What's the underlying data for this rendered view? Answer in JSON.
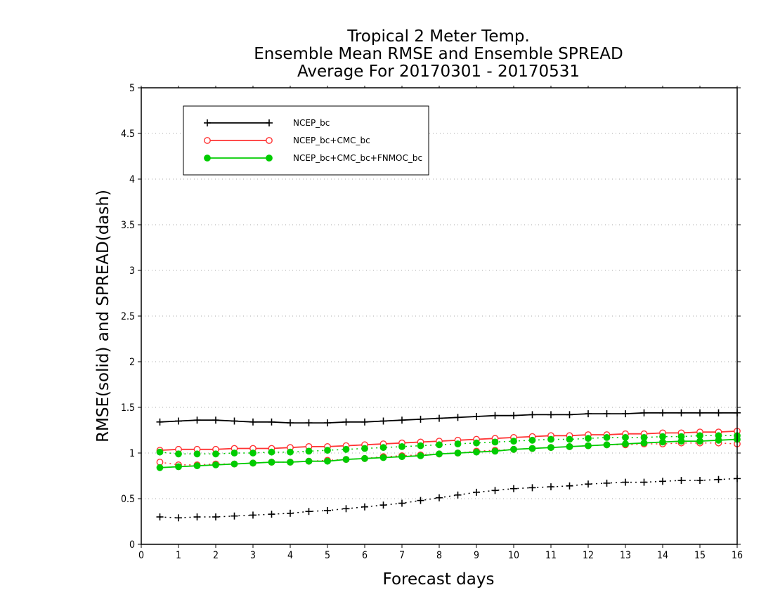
{
  "chart_data": {
    "type": "line",
    "title": [
      "Tropical 2 Meter Temp.",
      "Ensemble Mean RMSE and Ensemble SPREAD",
      "Average For 20170301 - 20170531"
    ],
    "xlabel": "Forecast days",
    "ylabel": "RMSE(solid) and SPREAD(dash)",
    "xlim": [
      0,
      16
    ],
    "ylim": [
      0,
      5
    ],
    "xticks": [
      "0",
      "1",
      "2",
      "3",
      "4",
      "5",
      "6",
      "7",
      "8",
      "9",
      "10",
      "11",
      "12",
      "13",
      "14",
      "15",
      "16"
    ],
    "yticks": [
      "0",
      "0.5",
      "1",
      "1.5",
      "2",
      "2.5",
      "3",
      "3.5",
      "4",
      "4.5",
      "5"
    ],
    "grid": true,
    "legend_position": "top-left",
    "x": [
      0.5,
      1,
      1.5,
      2,
      2.5,
      3,
      3.5,
      4,
      4.5,
      5,
      5.5,
      6,
      6.5,
      7,
      7.5,
      8,
      8.5,
      9,
      9.5,
      10,
      10.5,
      11,
      11.5,
      12,
      12.5,
      13,
      13.5,
      14,
      14.5,
      15,
      15.5,
      16
    ],
    "series": [
      {
        "name": "NCEP_bc",
        "color": "#000000",
        "marker": "plus",
        "rmse": [
          1.34,
          1.35,
          1.36,
          1.36,
          1.35,
          1.34,
          1.34,
          1.33,
          1.33,
          1.33,
          1.34,
          1.34,
          1.35,
          1.36,
          1.37,
          1.38,
          1.39,
          1.4,
          1.41,
          1.41,
          1.42,
          1.42,
          1.42,
          1.43,
          1.43,
          1.43,
          1.44,
          1.44,
          1.44,
          1.44,
          1.44,
          1.44
        ],
        "spread": [
          0.3,
          0.29,
          0.3,
          0.3,
          0.31,
          0.32,
          0.33,
          0.34,
          0.36,
          0.37,
          0.39,
          0.41,
          0.43,
          0.45,
          0.48,
          0.51,
          0.54,
          0.57,
          0.59,
          0.61,
          0.62,
          0.63,
          0.64,
          0.66,
          0.67,
          0.68,
          0.68,
          0.69,
          0.7,
          0.7,
          0.71,
          0.72
        ]
      },
      {
        "name": "NCEP_bc+CMC_bc",
        "color": "#ff3333",
        "marker": "open-circle",
        "rmse": [
          1.03,
          1.04,
          1.04,
          1.04,
          1.05,
          1.05,
          1.05,
          1.06,
          1.07,
          1.07,
          1.08,
          1.09,
          1.1,
          1.11,
          1.12,
          1.13,
          1.14,
          1.15,
          1.16,
          1.17,
          1.18,
          1.19,
          1.19,
          1.2,
          1.2,
          1.21,
          1.21,
          1.22,
          1.22,
          1.23,
          1.23,
          1.24
        ],
        "spread": [
          0.9,
          0.87,
          0.87,
          0.88,
          0.88,
          0.89,
          0.9,
          0.9,
          0.91,
          0.92,
          0.93,
          0.94,
          0.96,
          0.97,
          0.98,
          0.99,
          1.0,
          1.02,
          1.03,
          1.04,
          1.05,
          1.06,
          1.07,
          1.08,
          1.09,
          1.09,
          1.1,
          1.1,
          1.11,
          1.11,
          1.11,
          1.1
        ]
      },
      {
        "name": "NCEP_bc+CMC_bc+FNMOC_bc",
        "color": "#00cc00",
        "marker": "filled-circle",
        "rmse": [
          0.84,
          0.85,
          0.86,
          0.87,
          0.88,
          0.89,
          0.9,
          0.9,
          0.91,
          0.91,
          0.93,
          0.94,
          0.95,
          0.96,
          0.97,
          0.99,
          1.0,
          1.01,
          1.02,
          1.04,
          1.05,
          1.06,
          1.07,
          1.08,
          1.09,
          1.1,
          1.11,
          1.12,
          1.13,
          1.13,
          1.14,
          1.15
        ],
        "spread": [
          1.01,
          0.99,
          0.99,
          0.99,
          1.0,
          1.0,
          1.01,
          1.01,
          1.02,
          1.03,
          1.04,
          1.05,
          1.06,
          1.07,
          1.08,
          1.09,
          1.1,
          1.11,
          1.12,
          1.13,
          1.14,
          1.15,
          1.15,
          1.16,
          1.17,
          1.17,
          1.17,
          1.18,
          1.18,
          1.19,
          1.19,
          1.19
        ]
      }
    ]
  }
}
